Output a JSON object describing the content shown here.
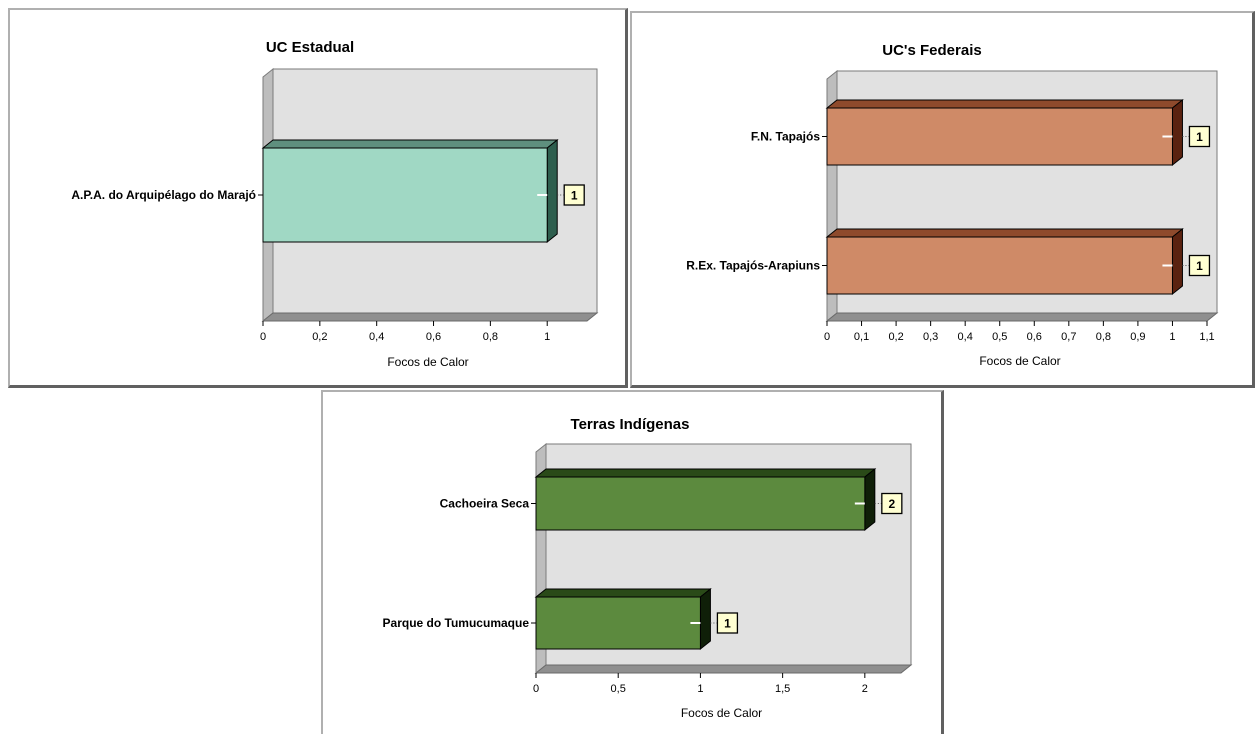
{
  "chart_data": [
    {
      "id": "uc-estadual",
      "type": "bar",
      "orientation": "horizontal",
      "title": "UC Estadual",
      "categories": [
        "A.P.A. do Arquipélago do Marajó"
      ],
      "values": [
        1
      ],
      "xlabel": "Focos de Calor",
      "ylabel": "",
      "xlim": [
        0,
        1.14
      ],
      "ticks": [
        0,
        0.2,
        0.4,
        0.6,
        0.8,
        1
      ],
      "tick_labels": [
        "0",
        "0,2",
        "0,4",
        "0,6",
        "0,8",
        "1"
      ],
      "data_labels": [
        "1"
      ],
      "bar_color": "#a0d8c4",
      "bar_side_color": "#2e5e4e",
      "bar_top_color": "#5f8f7e",
      "legend": "none"
    },
    {
      "id": "uc-federais",
      "type": "bar",
      "orientation": "horizontal",
      "title": "UC's Federais",
      "categories": [
        "F.N. Tapajós",
        "R.Ex. Tapajós-Arapiuns"
      ],
      "values": [
        1,
        1
      ],
      "xlabel": "Focos de Calor",
      "ylabel": "",
      "xlim": [
        0,
        1.1
      ],
      "ticks": [
        0,
        0.1,
        0.2,
        0.3,
        0.4,
        0.5,
        0.6,
        0.7,
        0.8,
        0.9,
        1,
        1.1
      ],
      "tick_labels": [
        "0",
        "0,1",
        "0,2",
        "0,3",
        "0,4",
        "0,5",
        "0,6",
        "0,7",
        "0,8",
        "0,9",
        "1",
        "1,1"
      ],
      "data_labels": [
        "1",
        "1"
      ],
      "bar_color": "#cf8a67",
      "bar_side_color": "#5a2210",
      "bar_top_color": "#8e4a2c",
      "legend": "none"
    },
    {
      "id": "terras-indigenas",
      "type": "bar",
      "orientation": "horizontal",
      "title": "Terras Indígenas",
      "categories": [
        "Cachoeira Seca",
        "Parque do Tumucumaque"
      ],
      "values": [
        2,
        1
      ],
      "xlabel": "Focos de Calor",
      "ylabel": "",
      "xlim": [
        0,
        2.22
      ],
      "ticks": [
        0,
        0.5,
        1,
        1.5,
        2
      ],
      "tick_labels": [
        "0",
        "0,5",
        "1",
        "1,5",
        "2"
      ],
      "data_labels": [
        "2",
        "1"
      ],
      "bar_color": "#5c8a3e",
      "bar_side_color": "#0f1f08",
      "bar_top_color": "#2a4a18",
      "legend": "none"
    }
  ]
}
